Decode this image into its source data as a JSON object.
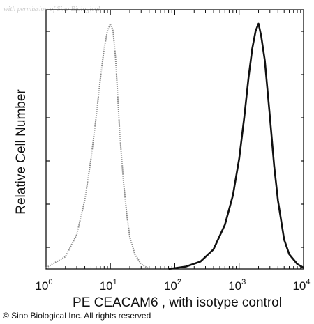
{
  "chart_data": {
    "type": "line",
    "xlabel": "PE CEACAM6 , with isotype control",
    "ylabel": "Relative Cell Number",
    "x_scale": "log",
    "xlim": [
      1,
      10000
    ],
    "ylim": [
      0,
      1
    ],
    "x_ticks": [
      {
        "base": "10",
        "exp": "0",
        "value": 1
      },
      {
        "base": "10",
        "exp": "1",
        "value": 10
      },
      {
        "base": "10",
        "exp": "2",
        "value": 100
      },
      {
        "base": "10",
        "exp": "3",
        "value": 1000
      },
      {
        "base": "10",
        "exp": "4",
        "value": 10000
      }
    ],
    "grid": false,
    "series": [
      {
        "style": "dotted",
        "color": "#8a8a8a",
        "x": [
          1.0,
          2.0,
          3.0,
          4.0,
          5.0,
          6.0,
          7.0,
          8.0,
          9.0,
          10.0,
          11.0,
          12.0,
          13.0,
          14.0,
          16.0,
          18.0,
          20.0,
          24.0,
          30.0,
          40.0
        ],
        "y": [
          0.005,
          0.05,
          0.14,
          0.28,
          0.45,
          0.62,
          0.78,
          0.9,
          0.97,
          1.0,
          0.97,
          0.86,
          0.7,
          0.55,
          0.35,
          0.22,
          0.13,
          0.06,
          0.02,
          0.0
        ]
      },
      {
        "style": "solid",
        "color": "#111111",
        "x": [
          80,
          150,
          250,
          400,
          600,
          800,
          1000,
          1200,
          1400,
          1600,
          1800,
          2000,
          2200,
          2500,
          3000,
          3500,
          4000,
          5000,
          6000,
          8000,
          10000
        ],
        "y": [
          0.0,
          0.01,
          0.03,
          0.08,
          0.18,
          0.3,
          0.45,
          0.62,
          0.78,
          0.9,
          0.97,
          1.0,
          0.95,
          0.85,
          0.62,
          0.42,
          0.28,
          0.12,
          0.06,
          0.02,
          0.005
        ]
      }
    ]
  },
  "watermark": "with permission of Sino Biological",
  "credit": "© Sino Biological Inc. All rights reserved"
}
